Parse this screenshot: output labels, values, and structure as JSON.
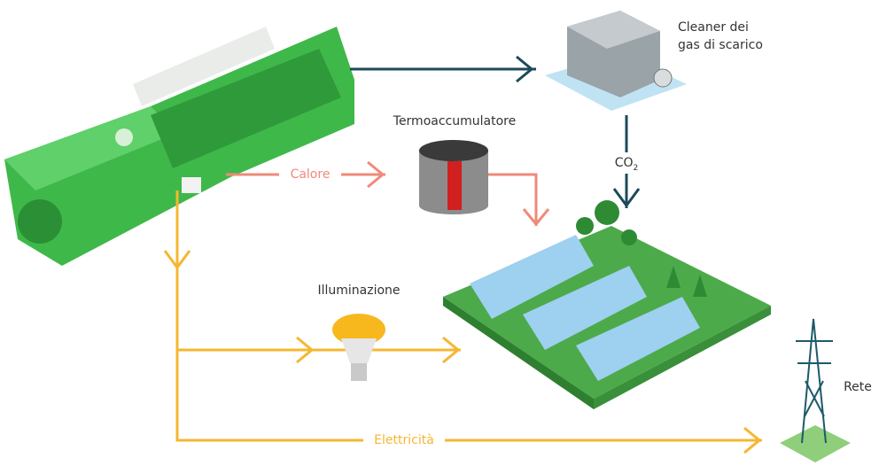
{
  "labels": {
    "cleaner": [
      "Cleaner dei",
      "gas di scarico"
    ],
    "thermo": "Termoaccumulatore",
    "heat": "Calore",
    "co2": {
      "base": "CO",
      "sub": "2"
    },
    "lighting": "Illuminazione",
    "grid": "Rete",
    "electricity": "Elettricità"
  }
}
